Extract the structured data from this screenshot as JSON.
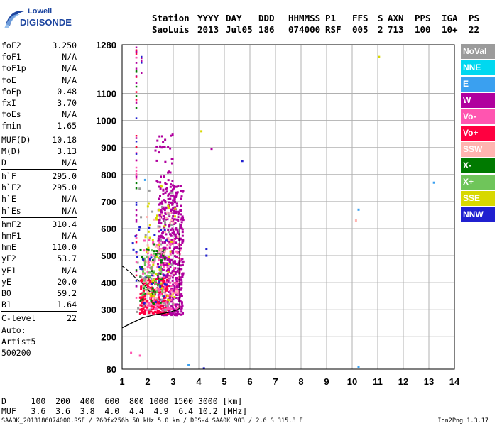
{
  "logo": {
    "line1": "Lowell",
    "line2": "DIGISONDE"
  },
  "header": {
    "row1": [
      "Station",
      "YYYY",
      "DAY",
      "DDD",
      "HHMMSS",
      "P1",
      "FFS",
      "S",
      "AXN",
      "PPS",
      "IGA",
      "PS"
    ],
    "row2": [
      "SaoLuis",
      "2013",
      "Jul05",
      "186",
      "074000",
      "RSF",
      "005",
      "2",
      "713",
      "100",
      "10+",
      "22"
    ]
  },
  "params": [
    {
      "label": "foF2",
      "value": "3.250"
    },
    {
      "label": "foF1",
      "value": "N/A"
    },
    {
      "label": "foF1p",
      "value": "N/A"
    },
    {
      "label": "foE",
      "value": "N/A"
    },
    {
      "label": "foEp",
      "value": "0.48"
    },
    {
      "label": "fxI",
      "value": "3.70"
    },
    {
      "label": "foEs",
      "value": "N/A"
    },
    {
      "label": "fmin",
      "value": "1.65"
    },
    {
      "label": "MUF(D)",
      "value": "10.18"
    },
    {
      "label": "M(D)",
      "value": "3.13"
    },
    {
      "label": "D",
      "value": "N/A"
    },
    {
      "label": "h`F",
      "value": "295.0"
    },
    {
      "label": "h`F2",
      "value": "295.0"
    },
    {
      "label": "h`E",
      "value": "N/A"
    },
    {
      "label": "h`Es",
      "value": "N/A"
    },
    {
      "label": "hmF2",
      "value": "310.4"
    },
    {
      "label": "hmF1",
      "value": "N/A"
    },
    {
      "label": "hmE",
      "value": "110.0"
    },
    {
      "label": "yF2",
      "value": "53.7"
    },
    {
      "label": "yF1",
      "value": "N/A"
    },
    {
      "label": "yE",
      "value": "20.0"
    },
    {
      "label": "B0",
      "value": "59.2"
    },
    {
      "label": "B1",
      "value": "1.64"
    },
    {
      "label": "C-level",
      "value": "22"
    }
  ],
  "auto": {
    "l1": "Auto:",
    "l2": "Artist5",
    "l3": "500200"
  },
  "legend": [
    {
      "label": "NoVal",
      "color": "#9b9b9b"
    },
    {
      "label": "NNE",
      "color": "#00d8f0"
    },
    {
      "label": "E",
      "color": "#3aa0f0"
    },
    {
      "label": "W",
      "color": "#b0009e"
    },
    {
      "label": "Vo-",
      "color": "#ff55b0"
    },
    {
      "label": "Vo+",
      "color": "#ff0040"
    },
    {
      "label": "SSW",
      "color": "#ffb4b0"
    },
    {
      "label": "X-",
      "color": "#007a00"
    },
    {
      "label": "X+",
      "color": "#6fc55a"
    },
    {
      "label": "SSE",
      "color": "#d8d800"
    },
    {
      "label": "NNW",
      "color": "#2020d0"
    }
  ],
  "muf_table": {
    "row_d": "D     100  200  400  600  800 1000 1500 3000 [km]",
    "row_muf": "MUF   3.6  3.6  3.8  4.0  4.4  4.9  6.4 10.2 [MHz]"
  },
  "footer": "SAA0K_2013186074000.RSF / 260fx256h 50 kHz 5.0 km / DPS-4 SAA0K 903 / 2.6 S 315.8 E",
  "footer_right": "Ion2Png 1.3.17",
  "chart_data": {
    "type": "scatter",
    "title": "",
    "xlabel": "",
    "ylabel": "",
    "xlim": [
      1,
      14
    ],
    "ylim": [
      80,
      1280
    ],
    "x_ticks": [
      1,
      2,
      3,
      4,
      5,
      6,
      7,
      8,
      9,
      10,
      11,
      12,
      13,
      14
    ],
    "y_ticks": [
      80,
      200,
      300,
      400,
      500,
      600,
      700,
      800,
      900,
      1000,
      1100,
      1280
    ],
    "grid": true,
    "legend_position": "right",
    "clusters": [
      {
        "name": "W",
        "x_range": [
          2.4,
          3.4
        ],
        "y_range": [
          280,
          760
        ],
        "count": 520,
        "color": "#b0009e"
      },
      {
        "name": "Vo+",
        "x_range": [
          1.7,
          2.8
        ],
        "y_range": [
          285,
          420
        ],
        "count": 230,
        "color": "#ff0040"
      },
      {
        "name": "Vo-",
        "x_range": [
          1.8,
          3.3
        ],
        "y_range": [
          300,
          560
        ],
        "count": 150,
        "color": "#ff55b0"
      },
      {
        "name": "X-",
        "x_range": [
          1.7,
          2.7
        ],
        "y_range": [
          320,
          560
        ],
        "count": 50,
        "color": "#007a00"
      },
      {
        "name": "X+",
        "x_range": [
          1.8,
          2.6
        ],
        "y_range": [
          340,
          520
        ],
        "count": 45,
        "color": "#6fc55a"
      },
      {
        "name": "SSE",
        "x_range": [
          1.9,
          3.1
        ],
        "y_range": [
          330,
          760
        ],
        "count": 45,
        "color": "#d8d800"
      },
      {
        "name": "SSW",
        "x_range": [
          1.9,
          3.2
        ],
        "y_range": [
          320,
          660
        ],
        "count": 50,
        "color": "#ffb4b0"
      },
      {
        "name": "NNW",
        "x_range": [
          1.4,
          2.8
        ],
        "y_range": [
          320,
          620
        ],
        "count": 30,
        "color": "#2020d0"
      },
      {
        "name": "NoVal",
        "x_range": [
          1.5,
          3.0
        ],
        "y_range": [
          290,
          760
        ],
        "count": 35,
        "color": "#9b9b9b"
      },
      {
        "name": "W-upper",
        "x_range": [
          2.3,
          3.0
        ],
        "y_range": [
          760,
          950
        ],
        "count": 35,
        "color": "#b0009e"
      }
    ],
    "column_points": [
      {
        "x": 1.55,
        "y_range": [
          320,
          1275
        ],
        "colors": [
          "#007a00",
          "#b0009e",
          "#ff0040",
          "#2020d0",
          "#ff55b0"
        ],
        "count": 60
      },
      {
        "x": 1.75,
        "y_range": [
          1170,
          1240
        ],
        "colors": [
          "#2020d0",
          "#b0009e"
        ],
        "count": 5
      }
    ],
    "isolated_points": [
      {
        "x": 11.05,
        "y": 1235,
        "color": "#d8d800"
      },
      {
        "x": 13.2,
        "y": 770,
        "color": "#3aa0f0"
      },
      {
        "x": 10.25,
        "y": 670,
        "color": "#3aa0f0"
      },
      {
        "x": 10.15,
        "y": 630,
        "color": "#ffb4b0"
      },
      {
        "x": 5.7,
        "y": 850,
        "color": "#2020d0"
      },
      {
        "x": 4.5,
        "y": 895,
        "color": "#b0009e"
      },
      {
        "x": 4.1,
        "y": 960,
        "color": "#d8d800"
      },
      {
        "x": 4.3,
        "y": 525,
        "color": "#2020d0"
      },
      {
        "x": 4.3,
        "y": 500,
        "color": "#2020d0"
      },
      {
        "x": 1.35,
        "y": 140,
        "color": "#ff55b0"
      },
      {
        "x": 1.7,
        "y": 130,
        "color": "#ff55b0"
      },
      {
        "x": 3.6,
        "y": 95,
        "color": "#3aa0f0"
      },
      {
        "x": 4.2,
        "y": 83,
        "color": "#2020d0"
      },
      {
        "x": 10.25,
        "y": 88,
        "color": "#3aa0f0"
      },
      {
        "x": 1.9,
        "y": 780,
        "color": "#3aa0f0"
      }
    ],
    "profile_curve": {
      "x": [
        1.0,
        1.4,
        1.8,
        2.2,
        2.6,
        2.9,
        3.1,
        3.25
      ],
      "y": [
        233,
        252,
        270,
        280,
        286,
        292,
        298,
        305
      ]
    },
    "trace_line": {
      "x": [
        1.0,
        1.3,
        1.6,
        1.9,
        2.05,
        2.15
      ],
      "y": [
        462,
        440,
        410,
        390,
        370,
        360
      ]
    },
    "vertical_line": {
      "x": 3.25,
      "y_range": [
        305,
        620
      ]
    }
  }
}
